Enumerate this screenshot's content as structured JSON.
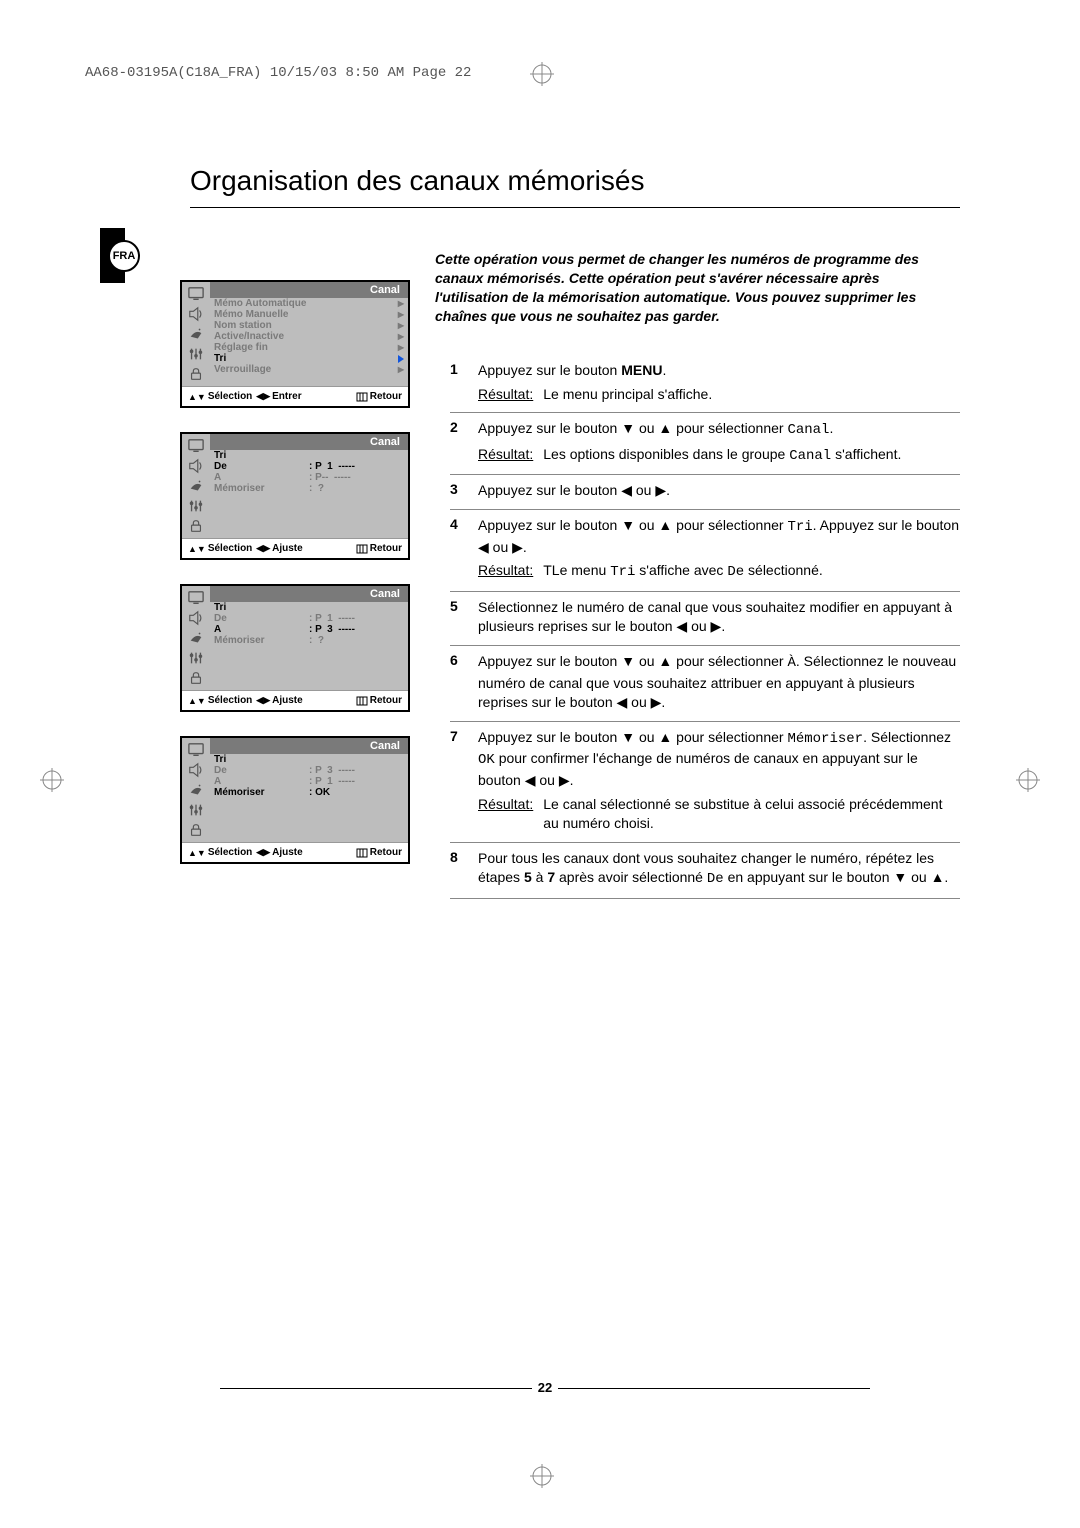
{
  "header": "AA68-03195A(C18A_FRA)  10/15/03  8:50 AM  Page 22",
  "lang_tag": "FRA",
  "title": "Organisation des canaux mémorisés",
  "intro": "Cette opération vous permet de changer les numéros de programme des canaux mémorisés. Cette opération peut s'avérer nécessaire après l'utilisation de la mémorisation automatique. Vous pouvez supprimer les chaînes que vous ne souhaitez pas garder.",
  "steps": [
    {
      "n": "1",
      "body": "Appuyez sur le bouton <b>MENU</b>.",
      "res": "Le menu principal s'affiche."
    },
    {
      "n": "2",
      "body": "Appuyez sur le bouton ▼ ou ▲ pour sélectionner <span class='mono'>Canal</span>.",
      "res": "Les options disponibles dans le groupe <span class='mono'>Canal</span> s'affichent."
    },
    {
      "n": "3",
      "body": "Appuyez sur le bouton ◀ ou ▶."
    },
    {
      "n": "4",
      "body": "Appuyez sur le bouton ▼ ou ▲ pour sélectionner <span class='mono'>Tri</span>. Appuyez sur le bouton ◀ ou ▶.",
      "res": "TLe menu <span class='mono'>Tri</span> s'affiche avec <span class='mono'>De</span> sélectionné."
    },
    {
      "n": "5",
      "body": "Sélectionnez le numéro de canal que vous souhaitez modifier en appuyant à plusieurs reprises sur le bouton ◀ ou ▶."
    },
    {
      "n": "6",
      "body": "Appuyez sur le bouton ▼ ou ▲ pour sélectionner <span class='mono'>À</span>. Sélectionnez le nouveau numéro de canal que vous souhaitez attribuer en appuyant à plusieurs reprises sur le bouton ◀ ou ▶."
    },
    {
      "n": "7",
      "body": "Appuyez sur le bouton ▼ ou ▲ pour sélectionner <span class='mono'>Mémoriser</span>. Sélectionnez <span class='mono'>OK</span> pour confirmer l'échange de numéros de canaux en appuyant sur le bouton ◀ ou ▶.",
      "res": "Le canal sélectionné se substitue à celui associé précédemment au numéro choisi."
    },
    {
      "n": "8",
      "body": "Pour tous les canaux dont vous souhaitez changer le numéro, répétez les étapes <b>5</b> à <b>7</b> après avoir sélectionné <span class='mono'>De</span> en appuyant sur le bouton ▼ ou ▲."
    }
  ],
  "osd_title": "Canal",
  "osd1": {
    "items": [
      {
        "lbl": "Mémo Automatique",
        "sel": false,
        "arrow": true
      },
      {
        "lbl": "Mémo Manuelle",
        "sel": false,
        "arrow": true
      },
      {
        "lbl": "Nom station",
        "sel": false,
        "arrow": true
      },
      {
        "lbl": "Active/Inactive",
        "sel": false,
        "arrow": true
      },
      {
        "lbl": "Réglage fin",
        "sel": false,
        "arrow": true
      },
      {
        "lbl": "Tri",
        "sel": true,
        "arrow": true
      },
      {
        "lbl": "Verrouillage",
        "sel": false,
        "arrow": true
      }
    ],
    "footer": {
      "a": "Sélection",
      "b": "Entrer",
      "c": "Retour"
    }
  },
  "osd2": {
    "sub": "Tri",
    "rows": [
      {
        "lbl": "De",
        "val": ": P  1  -----",
        "sel": true
      },
      {
        "lbl": "A",
        "val": ": P--  -----",
        "sel": false
      },
      {
        "lbl": "Mémoriser",
        "val": ":  ?",
        "sel": false
      }
    ],
    "footer": {
      "a": "Sélection",
      "b": "Ajuste",
      "c": "Retour"
    }
  },
  "osd3": {
    "sub": "Tri",
    "rows": [
      {
        "lbl": "De",
        "val": ": P  1  -----",
        "sel": false
      },
      {
        "lbl": "A",
        "val": ": P  3  -----",
        "sel": true
      },
      {
        "lbl": "Mémoriser",
        "val": ":  ?",
        "sel": false
      }
    ],
    "footer": {
      "a": "Sélection",
      "b": "Ajuste",
      "c": "Retour"
    }
  },
  "osd4": {
    "sub": "Tri",
    "rows": [
      {
        "lbl": "De",
        "val": ": P  3  -----",
        "sel": false
      },
      {
        "lbl": "A",
        "val": ": P  1  -----",
        "sel": false
      },
      {
        "lbl": "Mémoriser",
        "val": ": OK",
        "sel": true
      }
    ],
    "footer": {
      "a": "Sélection",
      "b": "Ajuste",
      "c": "Retour"
    }
  },
  "page_number": "22",
  "resultat_label": "Résultat:"
}
